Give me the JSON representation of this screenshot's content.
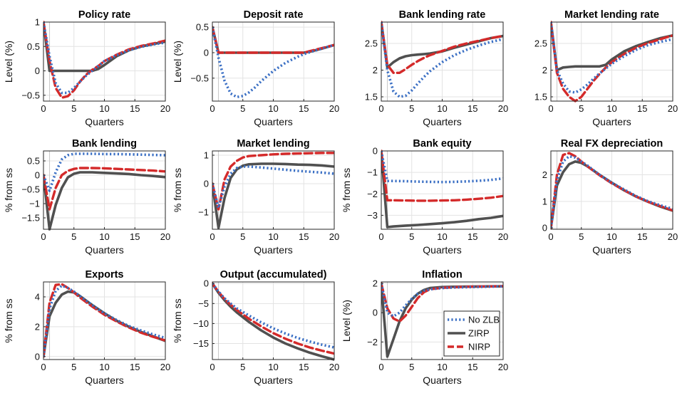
{
  "colors": {
    "No ZLB": "#3a6fc4",
    "ZIRP": "#505050",
    "NIRP": "#d42a2a",
    "grid": "#e3e3e3"
  },
  "line_styles": {
    "No ZLB": "dotted",
    "ZIRP": "solid",
    "NIRP": "dashed"
  },
  "legend": {
    "placement": "lower-right of Inflation panel",
    "entries": [
      "No ZLB",
      "ZIRP",
      "NIRP"
    ]
  },
  "chart_data": [
    {
      "type": "line",
      "title": "Policy rate",
      "xlabel": "Quarters",
      "ylabel": "Level (%)",
      "xlim": [
        0,
        20
      ],
      "ylim": [
        -0.62,
        1.0
      ],
      "xticks": [
        0,
        5,
        10,
        15,
        20
      ],
      "yticks": [
        -0.5,
        0,
        0.5,
        1
      ],
      "grid": true,
      "x": [
        0,
        1,
        2,
        3,
        4,
        5,
        6,
        7,
        8,
        9,
        10,
        12,
        14,
        16,
        18,
        20
      ],
      "series": [
        {
          "name": "No ZLB",
          "values": [
            1.0,
            0.3,
            -0.25,
            -0.45,
            -0.45,
            -0.35,
            -0.22,
            -0.1,
            0.0,
            0.1,
            0.2,
            0.32,
            0.42,
            0.49,
            0.54,
            0.58
          ]
        },
        {
          "name": "ZIRP",
          "values": [
            1.0,
            0.0,
            0.0,
            0.0,
            0.0,
            0.0,
            0.0,
            0.0,
            0.0,
            0.04,
            0.12,
            0.3,
            0.42,
            0.5,
            0.55,
            0.6
          ]
        },
        {
          "name": "NIRP",
          "values": [
            1.0,
            0.2,
            -0.35,
            -0.55,
            -0.52,
            -0.4,
            -0.22,
            -0.08,
            0.02,
            0.1,
            0.2,
            0.33,
            0.44,
            0.51,
            0.56,
            0.62
          ]
        }
      ]
    },
    {
      "type": "line",
      "title": "Deposit rate",
      "xlabel": "Quarters",
      "ylabel": "Level (%)",
      "xlim": [
        0,
        20
      ],
      "ylim": [
        -0.95,
        0.6
      ],
      "xticks": [
        0,
        5,
        10,
        15,
        20
      ],
      "yticks": [
        -0.5,
        0,
        0.5
      ],
      "grid": true,
      "x": [
        0,
        1,
        2,
        3,
        4,
        5,
        6,
        7,
        8,
        10,
        12,
        14,
        15,
        16,
        18,
        20
      ],
      "series": [
        {
          "name": "No ZLB",
          "values": [
            0.5,
            -0.1,
            -0.55,
            -0.8,
            -0.87,
            -0.85,
            -0.78,
            -0.68,
            -0.56,
            -0.36,
            -0.2,
            -0.08,
            -0.03,
            0.01,
            0.08,
            0.15
          ]
        },
        {
          "name": "ZIRP",
          "values": [
            0.5,
            0.0,
            0.0,
            0.0,
            0.0,
            0.0,
            0.0,
            0.0,
            0.0,
            0.0,
            0.0,
            0.0,
            0.0,
            0.02,
            0.08,
            0.15
          ]
        },
        {
          "name": "NIRP",
          "values": [
            0.5,
            0.0,
            0.0,
            0.0,
            0.0,
            0.0,
            0.0,
            0.0,
            0.0,
            0.0,
            0.0,
            0.0,
            0.0,
            0.03,
            0.09,
            0.15
          ]
        }
      ]
    },
    {
      "type": "line",
      "title": "Bank lending rate",
      "xlabel": "Quarters",
      "ylabel": "",
      "xlim": [
        0,
        20
      ],
      "ylim": [
        1.42,
        2.9
      ],
      "xticks": [
        0,
        5,
        10,
        15,
        20
      ],
      "yticks": [
        1.5,
        2,
        2.5
      ],
      "grid": true,
      "x": [
        0,
        1,
        2,
        3,
        4,
        5,
        6,
        7,
        8,
        10,
        12,
        14,
        16,
        18,
        20
      ],
      "series": [
        {
          "name": "No ZLB",
          "values": [
            2.9,
            2.0,
            1.6,
            1.5,
            1.52,
            1.62,
            1.75,
            1.87,
            1.98,
            2.15,
            2.28,
            2.38,
            2.46,
            2.53,
            2.58
          ]
        },
        {
          "name": "ZIRP",
          "values": [
            2.9,
            2.05,
            2.15,
            2.22,
            2.26,
            2.28,
            2.29,
            2.3,
            2.31,
            2.35,
            2.42,
            2.48,
            2.54,
            2.6,
            2.64
          ]
        },
        {
          "name": "NIRP",
          "values": [
            2.9,
            2.1,
            1.95,
            1.95,
            2.02,
            2.1,
            2.17,
            2.23,
            2.28,
            2.36,
            2.44,
            2.5,
            2.55,
            2.6,
            2.64
          ]
        }
      ]
    },
    {
      "type": "line",
      "title": "Market lending rate",
      "xlabel": "Quarters",
      "ylabel": "",
      "xlim": [
        0,
        20
      ],
      "ylim": [
        1.42,
        2.9
      ],
      "xticks": [
        0,
        5,
        10,
        15,
        20
      ],
      "yticks": [
        1.5,
        2,
        2.5
      ],
      "grid": true,
      "x": [
        0,
        1,
        2,
        3,
        4,
        5,
        6,
        7,
        8,
        9,
        10,
        12,
        14,
        16,
        18,
        20
      ],
      "series": [
        {
          "name": "No ZLB",
          "values": [
            2.9,
            2.0,
            1.75,
            1.6,
            1.58,
            1.64,
            1.73,
            1.84,
            1.94,
            2.03,
            2.12,
            2.26,
            2.38,
            2.47,
            2.53,
            2.58
          ]
        },
        {
          "name": "ZIRP",
          "values": [
            2.9,
            2.0,
            2.05,
            2.06,
            2.07,
            2.07,
            2.07,
            2.07,
            2.07,
            2.1,
            2.2,
            2.35,
            2.45,
            2.53,
            2.6,
            2.65
          ]
        },
        {
          "name": "NIRP",
          "values": [
            2.9,
            1.95,
            1.65,
            1.5,
            1.42,
            1.5,
            1.65,
            1.8,
            1.93,
            2.05,
            2.15,
            2.3,
            2.42,
            2.51,
            2.58,
            2.65
          ]
        }
      ]
    },
    {
      "type": "line",
      "title": "Bank lending",
      "xlabel": "Quarters",
      "ylabel": "% from ss",
      "xlim": [
        0,
        20
      ],
      "ylim": [
        -1.9,
        0.85
      ],
      "xticks": [
        0,
        5,
        10,
        15,
        20
      ],
      "yticks": [
        -1.5,
        -1,
        -0.5,
        0,
        0.5
      ],
      "grid": true,
      "x": [
        0,
        1,
        2,
        3,
        4,
        5,
        6,
        8,
        10,
        12,
        14,
        16,
        18,
        20
      ],
      "series": [
        {
          "name": "No ZLB",
          "values": [
            0,
            -0.55,
            0.1,
            0.55,
            0.7,
            0.75,
            0.75,
            0.75,
            0.74,
            0.74,
            0.73,
            0.72,
            0.71,
            0.7
          ]
        },
        {
          "name": "ZIRP",
          "values": [
            0,
            -1.9,
            -1.05,
            -0.45,
            -0.08,
            0.05,
            0.1,
            0.1,
            0.08,
            0.06,
            0.04,
            0.0,
            -0.03,
            -0.07
          ]
        },
        {
          "name": "NIRP",
          "values": [
            0,
            -1.2,
            -0.45,
            0.0,
            0.15,
            0.22,
            0.25,
            0.25,
            0.24,
            0.22,
            0.2,
            0.18,
            0.16,
            0.13
          ]
        }
      ]
    },
    {
      "type": "line",
      "title": "Market lending",
      "xlabel": "Quarters",
      "ylabel": "% from ss",
      "xlim": [
        0,
        20
      ],
      "ylim": [
        -1.6,
        1.15
      ],
      "xticks": [
        0,
        5,
        10,
        15,
        20
      ],
      "yticks": [
        -1,
        0,
        1
      ],
      "grid": true,
      "x": [
        0,
        1,
        2,
        3,
        4,
        5,
        6,
        8,
        10,
        12,
        14,
        16,
        18,
        20
      ],
      "series": [
        {
          "name": "No ZLB",
          "values": [
            0,
            -0.85,
            -0.1,
            0.35,
            0.55,
            0.6,
            0.6,
            0.57,
            0.53,
            0.49,
            0.45,
            0.42,
            0.39,
            0.35
          ]
        },
        {
          "name": "ZIRP",
          "values": [
            0,
            -1.55,
            -0.5,
            0.2,
            0.5,
            0.63,
            0.68,
            0.7,
            0.7,
            0.69,
            0.67,
            0.66,
            0.64,
            0.6
          ]
        },
        {
          "name": "NIRP",
          "values": [
            0,
            -0.9,
            0.15,
            0.6,
            0.8,
            0.92,
            0.97,
            1.0,
            1.03,
            1.05,
            1.06,
            1.07,
            1.08,
            1.08
          ]
        }
      ]
    },
    {
      "type": "line",
      "title": "Bank equity",
      "xlabel": "Quarters",
      "ylabel": "% from ss",
      "xlim": [
        0,
        20
      ],
      "ylim": [
        -3.65,
        0.0
      ],
      "xticks": [
        0,
        5,
        10,
        15,
        20
      ],
      "yticks": [
        -3,
        -2,
        -1,
        0
      ],
      "grid": true,
      "x": [
        0,
        1,
        2,
        4,
        6,
        8,
        10,
        12,
        14,
        16,
        18,
        20
      ],
      "series": [
        {
          "name": "No ZLB",
          "values": [
            0,
            -1.4,
            -1.4,
            -1.41,
            -1.43,
            -1.44,
            -1.45,
            -1.44,
            -1.42,
            -1.39,
            -1.35,
            -1.28
          ]
        },
        {
          "name": "ZIRP",
          "values": [
            0,
            -3.55,
            -3.52,
            -3.48,
            -3.45,
            -3.41,
            -3.37,
            -3.32,
            -3.26,
            -3.18,
            -3.12,
            -3.03
          ]
        },
        {
          "name": "NIRP",
          "values": [
            0,
            -2.3,
            -2.3,
            -2.31,
            -2.32,
            -2.32,
            -2.31,
            -2.3,
            -2.27,
            -2.23,
            -2.18,
            -2.1
          ]
        }
      ]
    },
    {
      "type": "line",
      "title": "Real FX depreciation",
      "xlabel": "Quarters",
      "ylabel": "",
      "xlim": [
        0,
        20
      ],
      "ylim": [
        -0.05,
        2.9
      ],
      "xticks": [
        0,
        5,
        10,
        15,
        20
      ],
      "yticks": [
        0,
        1,
        2
      ],
      "grid": true,
      "x": [
        0,
        1,
        2,
        3,
        4,
        5,
        6,
        8,
        10,
        12,
        14,
        16,
        18,
        20
      ],
      "series": [
        {
          "name": "No ZLB",
          "values": [
            0,
            1.8,
            2.5,
            2.7,
            2.65,
            2.5,
            2.35,
            2.0,
            1.7,
            1.45,
            1.2,
            1.0,
            0.85,
            0.72
          ]
        },
        {
          "name": "ZIRP",
          "values": [
            0,
            1.6,
            2.1,
            2.4,
            2.5,
            2.45,
            2.32,
            2.0,
            1.7,
            1.42,
            1.18,
            0.98,
            0.8,
            0.65
          ]
        },
        {
          "name": "NIRP",
          "values": [
            0,
            2.0,
            2.75,
            2.82,
            2.7,
            2.5,
            2.32,
            1.98,
            1.68,
            1.42,
            1.18,
            0.98,
            0.82,
            0.66
          ]
        }
      ]
    },
    {
      "type": "line",
      "title": "Exports",
      "xlabel": "Quarters",
      "ylabel": "% from ss",
      "xlim": [
        0,
        20
      ],
      "ylim": [
        -0.2,
        5.0
      ],
      "xticks": [
        0,
        5,
        10,
        15,
        20
      ],
      "yticks": [
        0,
        2,
        4
      ],
      "grid": true,
      "x": [
        0,
        1,
        2,
        3,
        4,
        5,
        6,
        8,
        10,
        12,
        14,
        16,
        18,
        20
      ],
      "series": [
        {
          "name": "No ZLB",
          "values": [
            0,
            3.2,
            4.4,
            4.75,
            4.6,
            4.35,
            4.05,
            3.45,
            2.9,
            2.45,
            2.05,
            1.75,
            1.48,
            1.25
          ]
        },
        {
          "name": "ZIRP",
          "values": [
            0,
            2.7,
            3.6,
            4.15,
            4.35,
            4.3,
            4.05,
            3.45,
            2.9,
            2.4,
            2.0,
            1.65,
            1.35,
            1.05
          ]
        },
        {
          "name": "NIRP",
          "values": [
            0,
            3.6,
            4.8,
            4.85,
            4.6,
            4.3,
            3.95,
            3.35,
            2.8,
            2.35,
            1.95,
            1.6,
            1.32,
            1.08
          ]
        }
      ]
    },
    {
      "type": "line",
      "title": "Output (accumulated)",
      "xlabel": "Quarters",
      "ylabel": "% from ss",
      "xlim": [
        0,
        20
      ],
      "ylim": [
        -19.0,
        0.4
      ],
      "xticks": [
        0,
        5,
        10,
        15,
        20
      ],
      "yticks": [
        -15,
        -10,
        -5,
        0
      ],
      "grid": true,
      "x": [
        0,
        1,
        2,
        3,
        4,
        6,
        8,
        10,
        12,
        14,
        16,
        18,
        20
      ],
      "series": [
        {
          "name": "No ZLB",
          "values": [
            0,
            -2.0,
            -3.7,
            -5.0,
            -6.2,
            -8.0,
            -9.7,
            -11.2,
            -12.5,
            -13.6,
            -14.5,
            -15.3,
            -16.0
          ]
        },
        {
          "name": "ZIRP",
          "values": [
            0,
            -2.3,
            -4.2,
            -5.8,
            -7.2,
            -9.6,
            -11.7,
            -13.5,
            -15.0,
            -16.2,
            -17.3,
            -18.2,
            -19.0
          ]
        },
        {
          "name": "NIRP",
          "values": [
            0,
            -2.1,
            -3.9,
            -5.3,
            -6.6,
            -8.8,
            -10.7,
            -12.4,
            -13.8,
            -15.0,
            -16.0,
            -16.8,
            -17.5
          ]
        }
      ]
    },
    {
      "type": "line",
      "title": "Inflation",
      "xlabel": "Quarters",
      "ylabel": "Level (%)",
      "xlim": [
        0,
        20
      ],
      "ylim": [
        -3.2,
        2.1
      ],
      "xticks": [
        0,
        5,
        10,
        15,
        20
      ],
      "yticks": [
        -2,
        0,
        2
      ],
      "grid": true,
      "x": [
        0,
        1,
        2,
        3,
        4,
        5,
        6,
        7,
        8,
        10,
        12,
        14,
        16,
        18,
        20
      ],
      "series": [
        {
          "name": "No ZLB",
          "values": [
            2.0,
            0.0,
            -0.25,
            0.0,
            0.5,
            0.95,
            1.3,
            1.5,
            1.6,
            1.68,
            1.72,
            1.74,
            1.76,
            1.78,
            1.8
          ]
        },
        {
          "name": "ZIRP",
          "values": [
            2.0,
            -3.0,
            -1.8,
            -0.6,
            0.3,
            0.9,
            1.3,
            1.55,
            1.68,
            1.75,
            1.77,
            1.78,
            1.79,
            1.8,
            1.8
          ]
        },
        {
          "name": "NIRP",
          "values": [
            2.0,
            0.3,
            -0.4,
            -0.6,
            -0.2,
            0.4,
            1.0,
            1.4,
            1.6,
            1.7,
            1.74,
            1.77,
            1.79,
            1.8,
            1.82
          ]
        }
      ]
    }
  ]
}
